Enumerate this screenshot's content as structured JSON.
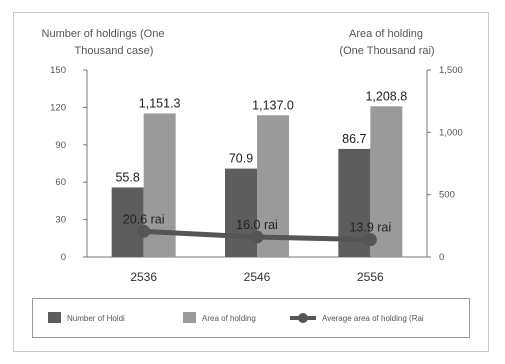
{
  "chart_data": {
    "type": "bar",
    "categories": [
      "2536",
      "2546",
      "2556"
    ],
    "series": [
      {
        "name": "Number of Holdi",
        "type": "bar",
        "axis": "left",
        "values": [
          55.8,
          70.9,
          86.7
        ],
        "labels": [
          "55.8",
          "70.9",
          "86.7"
        ],
        "color": "#5d5d5d"
      },
      {
        "name": "Area of holding",
        "type": "bar",
        "axis": "right",
        "values": [
          1151.3,
          1137.0,
          1208.8
        ],
        "labels": [
          "1,151.3",
          "1,137.0",
          "1,208.8"
        ],
        "color": "#9a9a9a"
      },
      {
        "name": "Average area of holding (Rai",
        "type": "line",
        "axis": "right",
        "values": [
          20.6,
          16.0,
          13.9
        ],
        "labels": [
          "20.6 rai",
          "16.0 rai",
          "13.9 rai"
        ],
        "color": "#555555"
      }
    ],
    "ylabel_left": [
      "Number of holdings (One",
      "Thousand case)"
    ],
    "ylabel_right": [
      "Area of holding",
      "(One Thousand rai)"
    ],
    "ylim_left": [
      0,
      150
    ],
    "yticks_left": [
      "0",
      "30",
      "60",
      "90",
      "120",
      "150"
    ],
    "ylim_right": [
      0,
      1500
    ],
    "yticks_right": [
      "0",
      "500",
      "1,000",
      "1,500"
    ],
    "line_scale_note": "line plotted against right axis scaled x10",
    "grid": false,
    "legend_position": "bottom"
  }
}
